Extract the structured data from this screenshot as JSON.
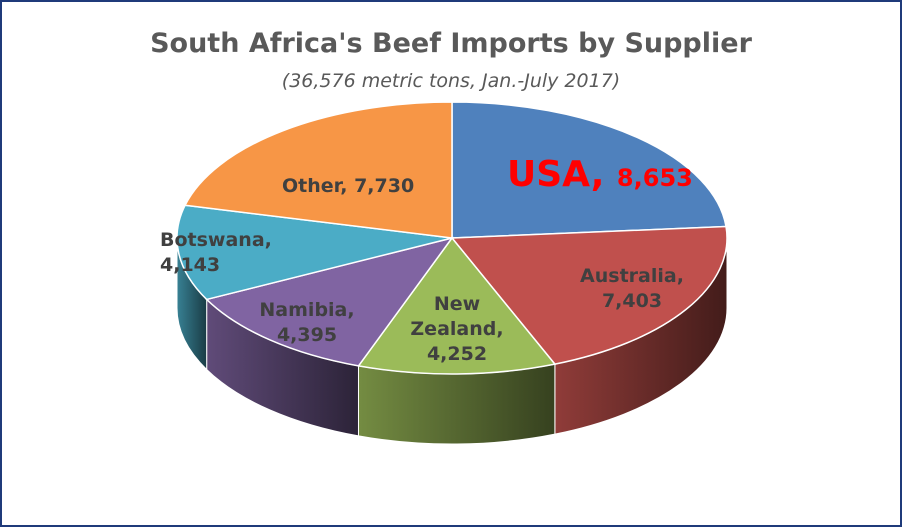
{
  "chart_data": {
    "type": "pie",
    "style": "3d",
    "title": "South Africa's Beef Imports by Supplier",
    "subtitle": "(36,576 metric tons, Jan.-July 2017)",
    "slices": [
      {
        "label": "USA",
        "value": 8653,
        "value_text": "8,653",
        "color": "#4f81bd",
        "label_color": "#ff0000"
      },
      {
        "label": "Australia",
        "value": 7403,
        "value_text": "7,403",
        "color": "#c0504d",
        "label_color": "#404040"
      },
      {
        "label": "New Zealand",
        "value": 4252,
        "value_text": "4,252",
        "color": "#9bbb59",
        "label_color": "#404040"
      },
      {
        "label": "Namibia",
        "value": 4395,
        "value_text": "4,395",
        "color": "#8064a2",
        "label_color": "#404040"
      },
      {
        "label": "Botswana",
        "value": 4143,
        "value_text": "4,143",
        "color": "#4bacc6",
        "label_color": "#404040"
      },
      {
        "label": "Other",
        "value": 7730,
        "value_text": "7,730",
        "color": "#f79646",
        "label_color": "#404040"
      }
    ]
  }
}
